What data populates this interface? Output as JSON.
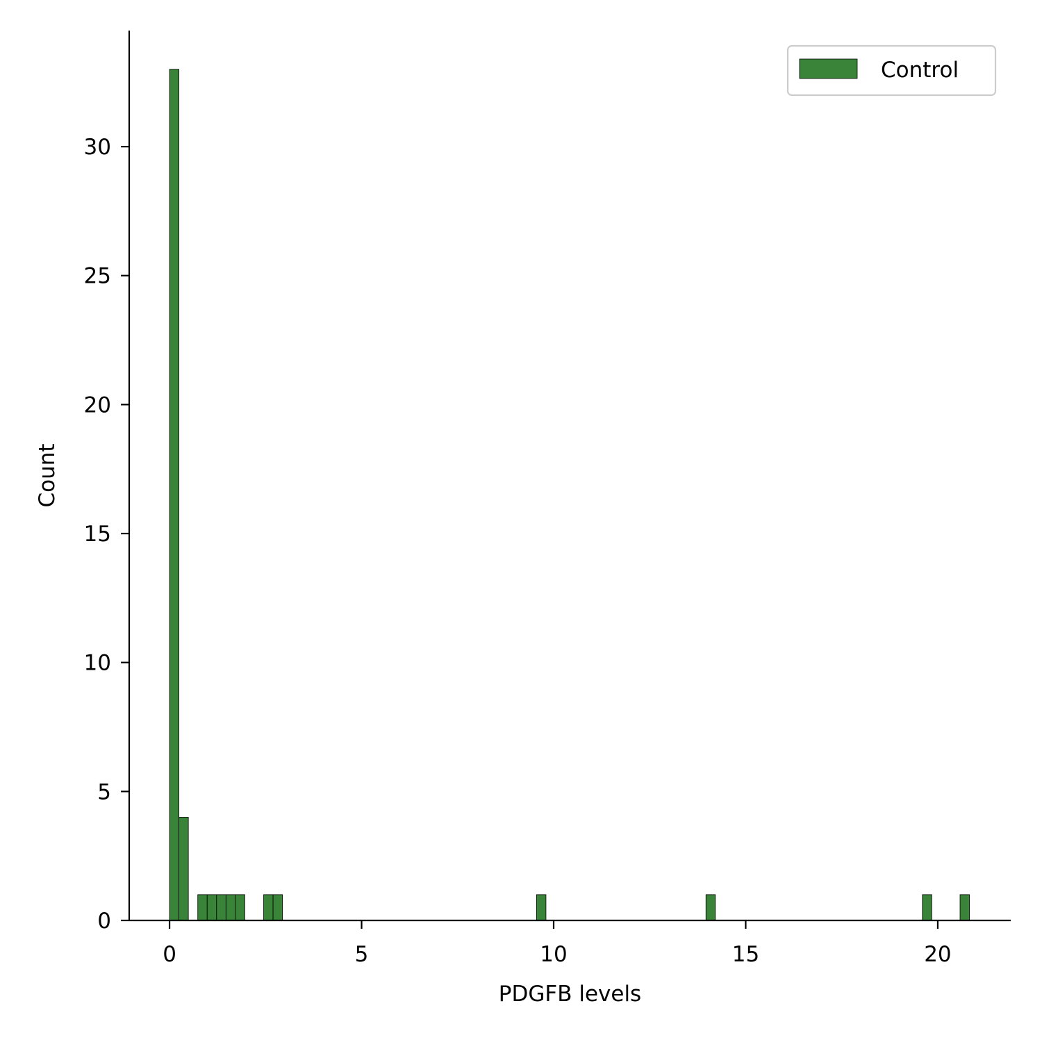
{
  "chart_data": {
    "type": "bar",
    "subtype": "histogram",
    "title": "",
    "xlabel": "PDGFB levels",
    "ylabel": "Count",
    "xlim": [
      -1.05,
      21.9
    ],
    "ylim": [
      0,
      34.5
    ],
    "xticks": [
      0,
      5,
      10,
      15,
      20
    ],
    "yticks": [
      0,
      5,
      10,
      15,
      20,
      25,
      30
    ],
    "bin_width": 0.245,
    "grid": false,
    "legend_position": "top-right",
    "series": [
      {
        "name": "Control",
        "color": "#3a843a",
        "bins": [
          {
            "x0": 0.0,
            "x1": 0.245,
            "count": 33
          },
          {
            "x0": 0.245,
            "x1": 0.49,
            "count": 4
          },
          {
            "x0": 0.735,
            "x1": 0.98,
            "count": 1
          },
          {
            "x0": 0.98,
            "x1": 1.225,
            "count": 1
          },
          {
            "x0": 1.225,
            "x1": 1.47,
            "count": 1
          },
          {
            "x0": 1.47,
            "x1": 1.715,
            "count": 1
          },
          {
            "x0": 1.715,
            "x1": 1.96,
            "count": 1
          },
          {
            "x0": 2.45,
            "x1": 2.695,
            "count": 1
          },
          {
            "x0": 2.695,
            "x1": 2.94,
            "count": 1
          },
          {
            "x0": 9.555,
            "x1": 9.8,
            "count": 1
          },
          {
            "x0": 13.965,
            "x1": 14.21,
            "count": 1
          },
          {
            "x0": 19.6,
            "x1": 19.845,
            "count": 1
          },
          {
            "x0": 20.58,
            "x1": 20.825,
            "count": 1
          }
        ]
      }
    ]
  }
}
